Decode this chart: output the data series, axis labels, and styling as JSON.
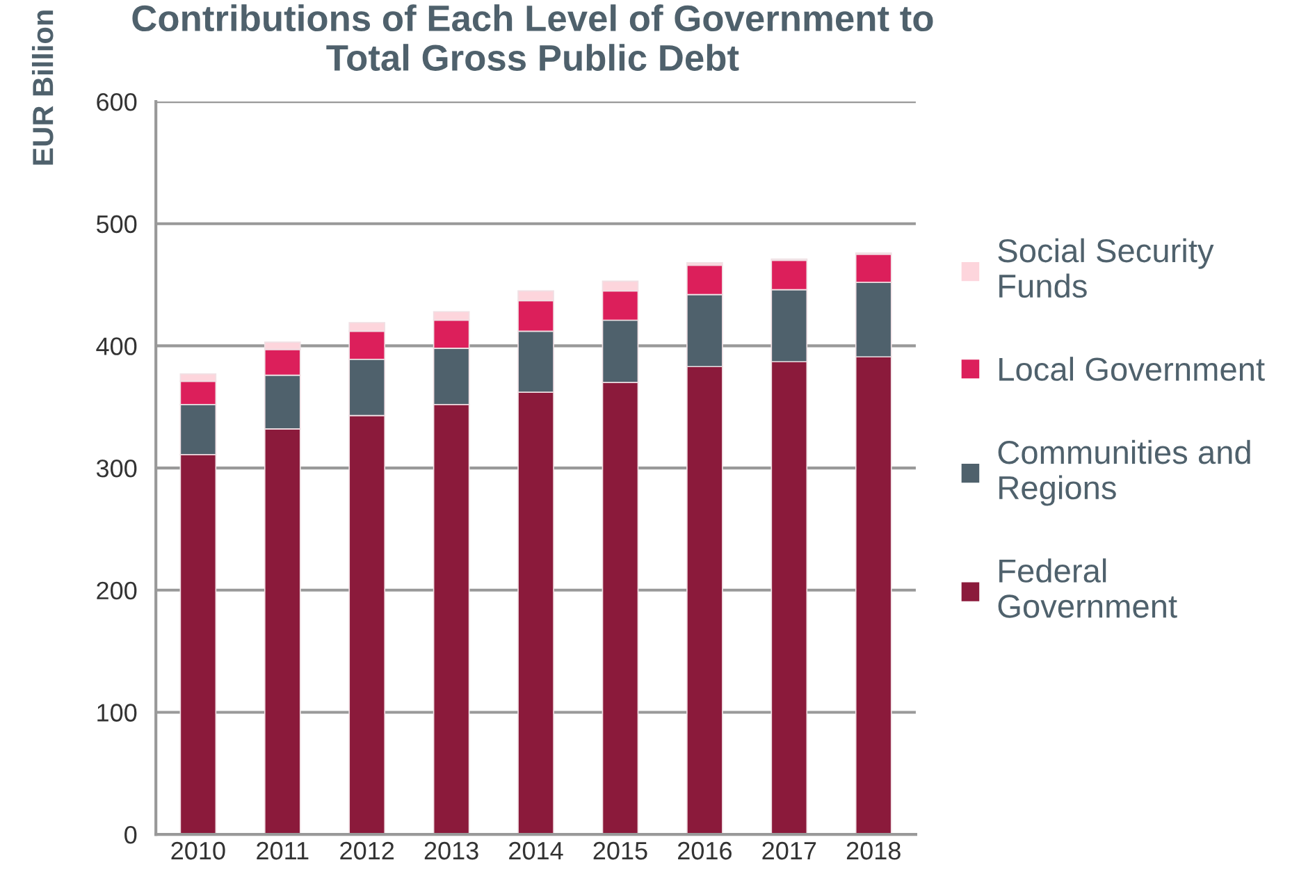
{
  "chart_data": {
    "type": "bar",
    "title": "Contributions of Each Level of Government to\nTotal Gross Public Debt",
    "ylabel": "EUR Billion",
    "categories": [
      "2010",
      "2011",
      "2012",
      "2013",
      "2014",
      "2015",
      "2016",
      "2017",
      "2018"
    ],
    "stacked": true,
    "series": [
      {
        "name": "Federal Government",
        "color": "#8b1a3b",
        "values": [
          311,
          332,
          343,
          352,
          362,
          370,
          383,
          387,
          391
        ]
      },
      {
        "name": "Communities and Regions",
        "color": "#4f616c",
        "values": [
          41,
          44,
          46,
          46,
          50,
          51,
          59,
          59,
          61
        ]
      },
      {
        "name": "Local Government",
        "color": "#dc1f5b",
        "values": [
          19,
          21,
          23,
          23,
          25,
          24,
          24,
          24,
          23
        ]
      },
      {
        "name": "Social Security Funds",
        "color": "#fdd5dc",
        "values": [
          6,
          6,
          7,
          7,
          8,
          8,
          2,
          1,
          1
        ]
      }
    ],
    "ylim": [
      0,
      600
    ],
    "yticks": [
      0,
      100,
      200,
      300,
      400,
      500,
      600
    ],
    "grid": "y",
    "legend": "right"
  }
}
